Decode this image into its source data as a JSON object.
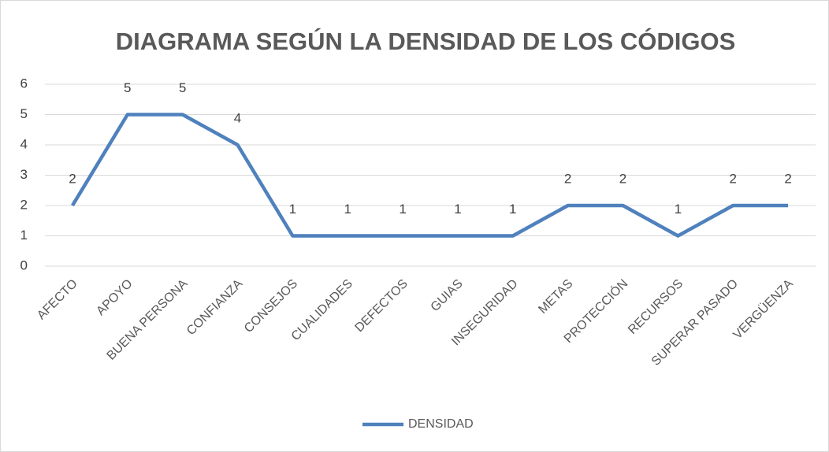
{
  "chart_data": {
    "type": "line",
    "title": "DIAGRAMA SEGÚN LA DENSIDAD DE LOS CÓDIGOS",
    "categories": [
      "AFECTO",
      "APOYO",
      "BUENA PERSONA",
      "CONFIANZA",
      "CONSEJOS",
      "CUALIDADES",
      "DEFECTOS",
      "GUIAS",
      "INSEGURIDAD",
      "METAS",
      "PROTECCIÓN",
      "RECURSOS",
      "SUPERAR PASADO",
      "VERGÜENZA"
    ],
    "series": [
      {
        "name": "DENSIDAD",
        "color": "#4f81bd",
        "values": [
          2,
          5,
          5,
          4,
          1,
          1,
          1,
          1,
          1,
          2,
          2,
          1,
          2,
          2
        ]
      }
    ],
    "ylim": [
      0,
      6
    ],
    "yticks": [
      0,
      1,
      2,
      3,
      4,
      5,
      6
    ],
    "grid": true,
    "data_labels": true,
    "legend": "bottom"
  }
}
